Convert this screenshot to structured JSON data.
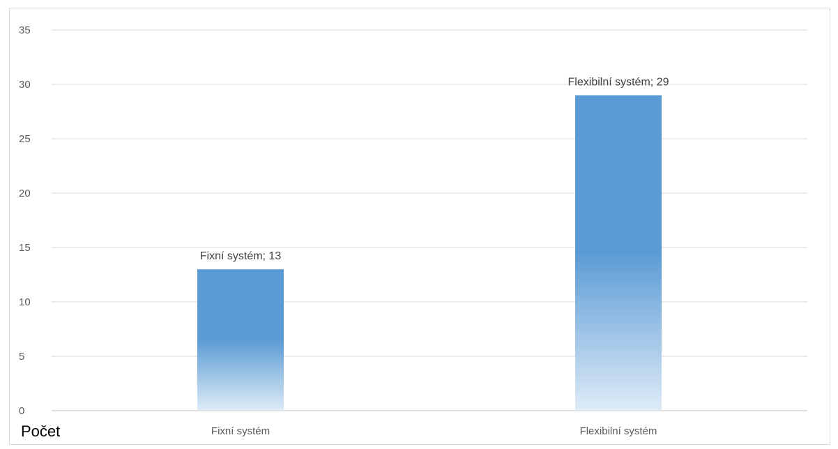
{
  "chart_data": {
    "type": "bar",
    "categories": [
      "Fixní systém",
      "Flexibilní systém"
    ],
    "values": [
      13,
      29
    ],
    "data_labels": [
      "Fixní systém; 13",
      "Flexibilní systém; 29"
    ],
    "ylim": [
      0,
      35
    ],
    "yticks": [
      0,
      5,
      10,
      15,
      20,
      25,
      30,
      35
    ],
    "grid": true,
    "bar_color": "#5b9bd5",
    "bar_fade_color": "#deebf7"
  },
  "field_label": "Počet"
}
